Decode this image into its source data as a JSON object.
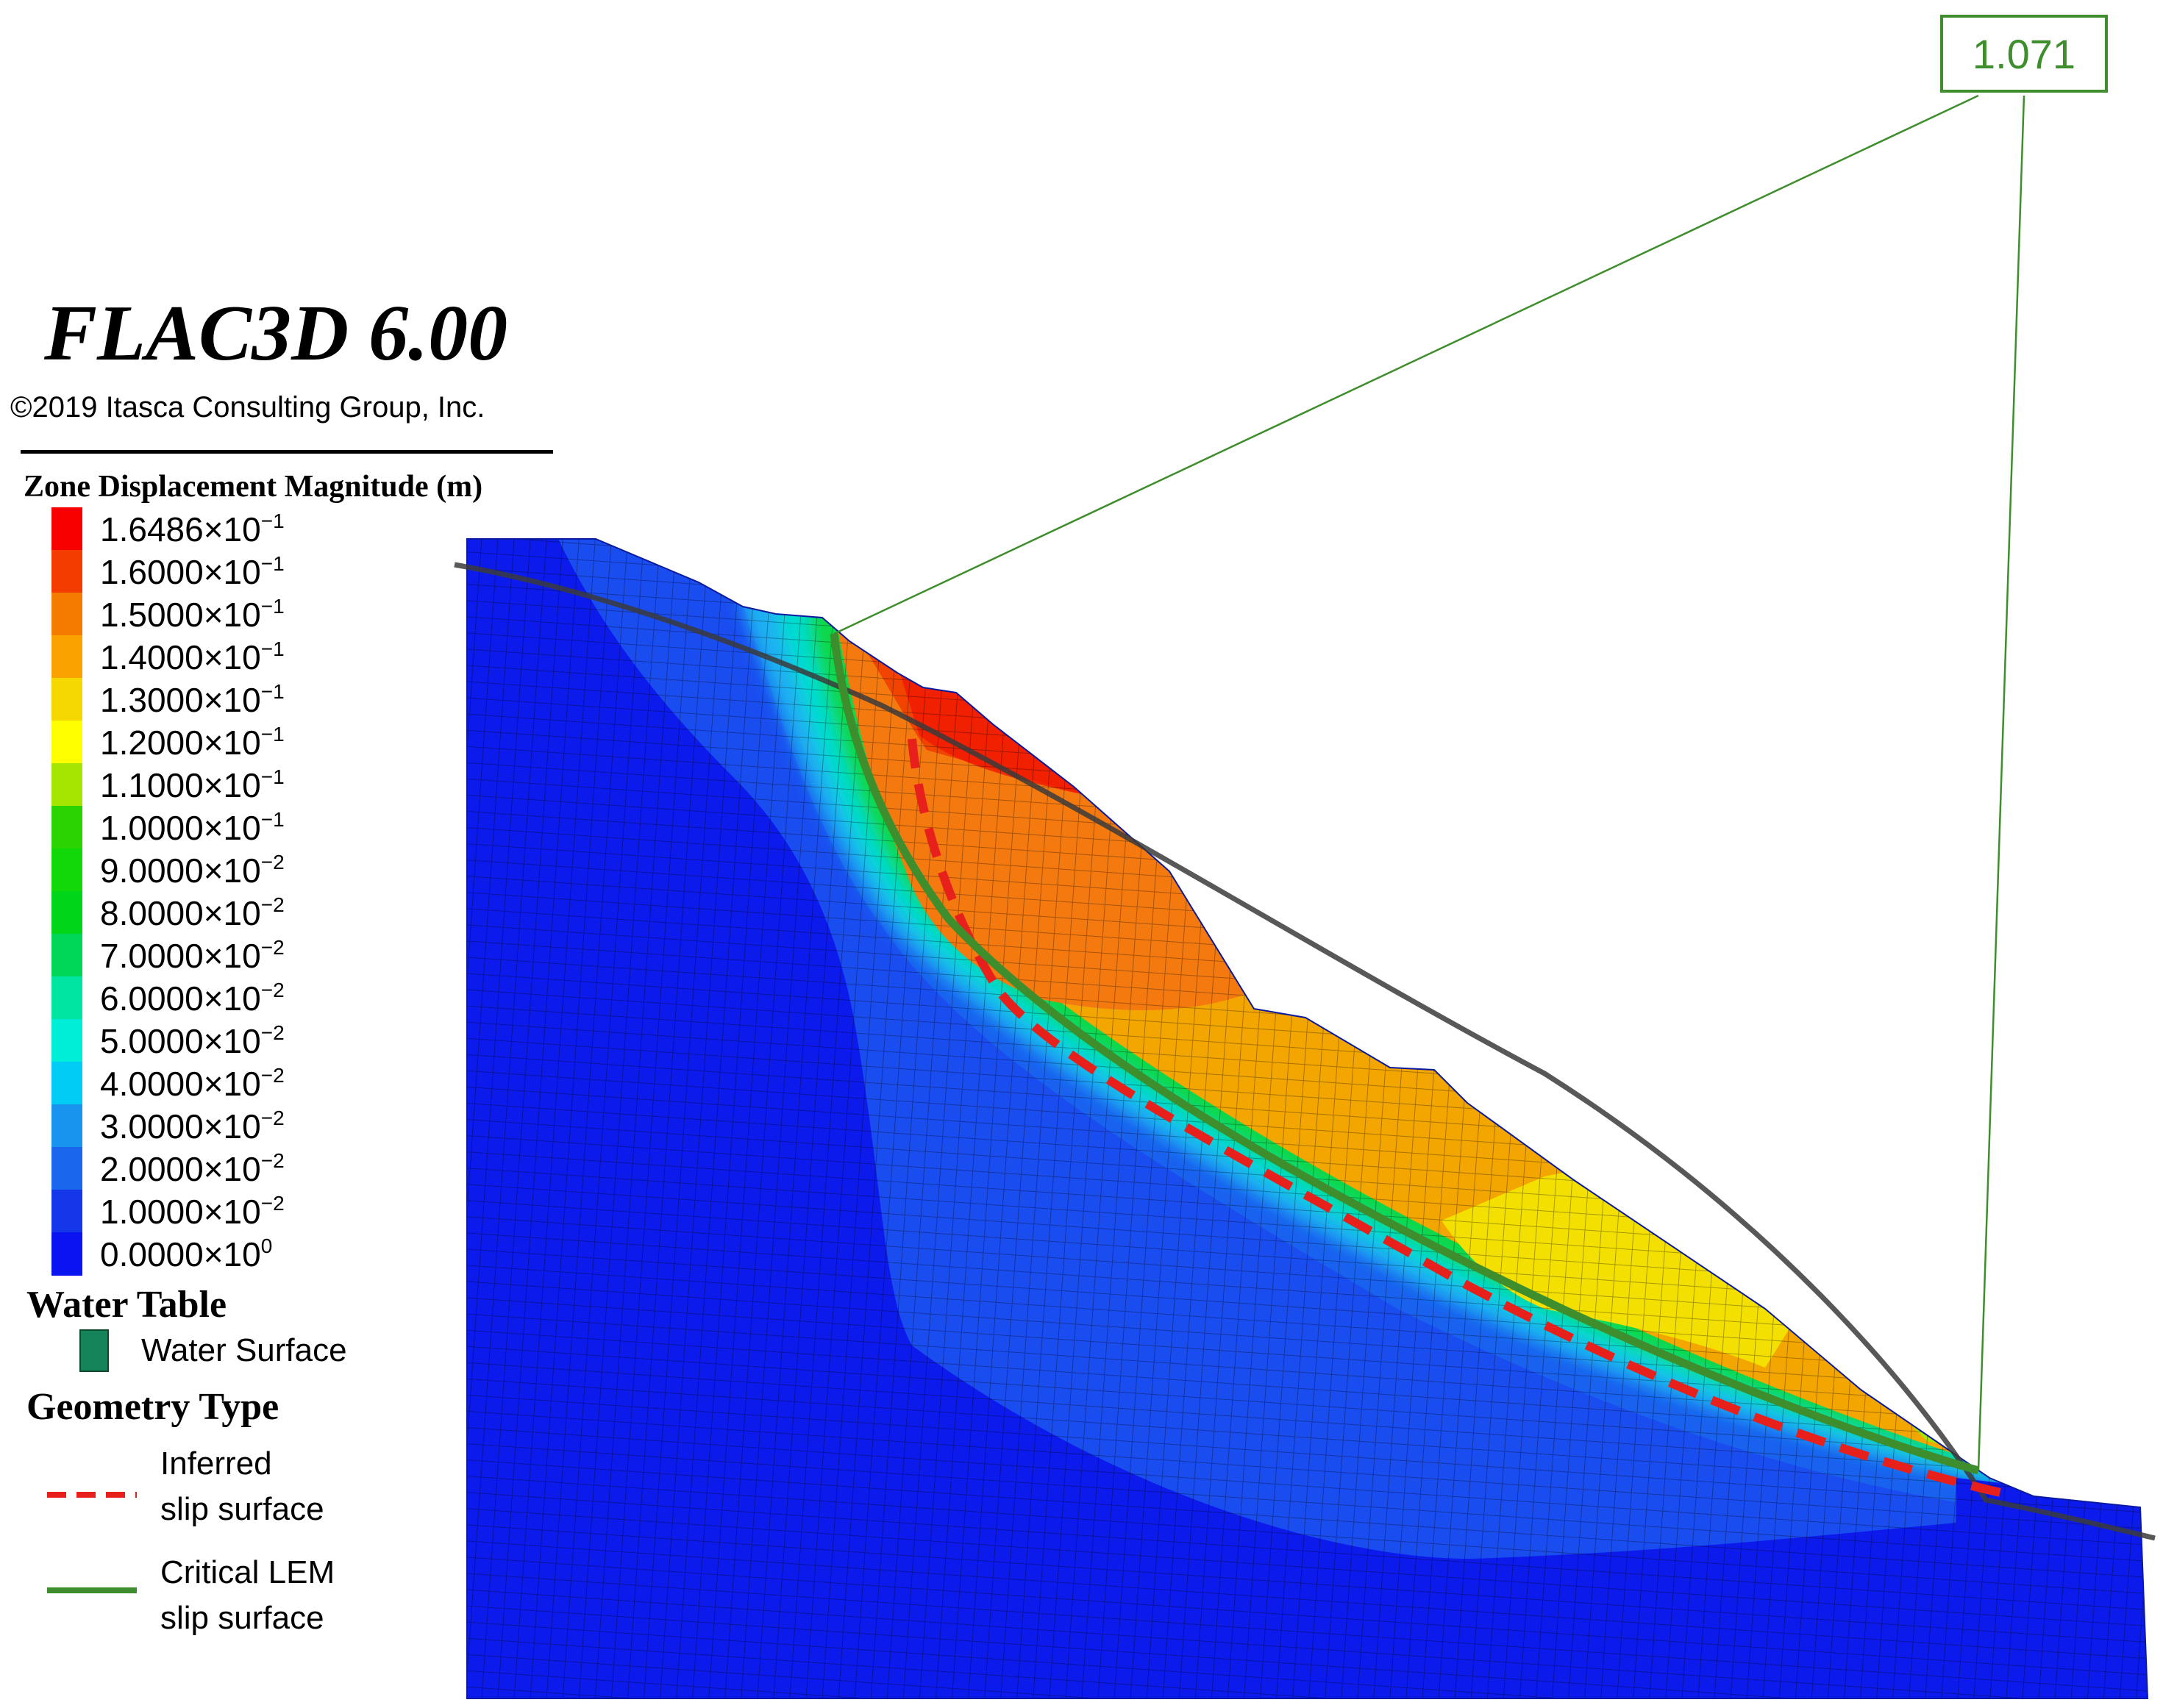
{
  "header": {
    "app_title": "FLAC3D 6.00",
    "copyright": "©2019 Itasca Consulting Group, Inc."
  },
  "legend": {
    "title": "Zone Displacement Magnitude (m)",
    "items": [
      {
        "label": "1.6486×10",
        "exp": "−1",
        "color": "#f80000"
      },
      {
        "label": "1.6000×10",
        "exp": "−1",
        "color": "#f43c00"
      },
      {
        "label": "1.5000×10",
        "exp": "−1",
        "color": "#f57a00"
      },
      {
        "label": "1.4000×10",
        "exp": "−1",
        "color": "#f9a200"
      },
      {
        "label": "1.3000×10",
        "exp": "−1",
        "color": "#f5d800"
      },
      {
        "label": "1.2000×10",
        "exp": "−1",
        "color": "#ffff00"
      },
      {
        "label": "1.1000×10",
        "exp": "−1",
        "color": "#a5e600"
      },
      {
        "label": "1.0000×10",
        "exp": "−1",
        "color": "#2ad400"
      },
      {
        "label": "9.0000×10",
        "exp": "−2",
        "color": "#12d80a"
      },
      {
        "label": "8.0000×10",
        "exp": "−2",
        "color": "#00d51a"
      },
      {
        "label": "7.0000×10",
        "exp": "−2",
        "color": "#00d658"
      },
      {
        "label": "6.0000×10",
        "exp": "−2",
        "color": "#00e6a0"
      },
      {
        "label": "5.0000×10",
        "exp": "−2",
        "color": "#00eed8"
      },
      {
        "label": "4.0000×10",
        "exp": "−2",
        "color": "#00ccf5"
      },
      {
        "label": "3.0000×10",
        "exp": "−2",
        "color": "#1894ee"
      },
      {
        "label": "2.0000×10",
        "exp": "−2",
        "color": "#1a66ec"
      },
      {
        "label": "1.0000×10",
        "exp": "−2",
        "color": "#1437ea"
      },
      {
        "label": "0.0000×10",
        "exp": "0",
        "color": "#0a14f0"
      }
    ]
  },
  "water_table": {
    "title": "Water Table",
    "item_label": "Water Surface",
    "color": "#16845a"
  },
  "geometry_type": {
    "title": "Geometry Type",
    "inferred": {
      "line1": "Inferred",
      "line2": "slip surface",
      "color": "#e8201c"
    },
    "critical": {
      "line1": "Critical LEM",
      "line2": "slip surface",
      "color": "#3e8e2d"
    }
  },
  "factor_of_safety": "1.071"
}
